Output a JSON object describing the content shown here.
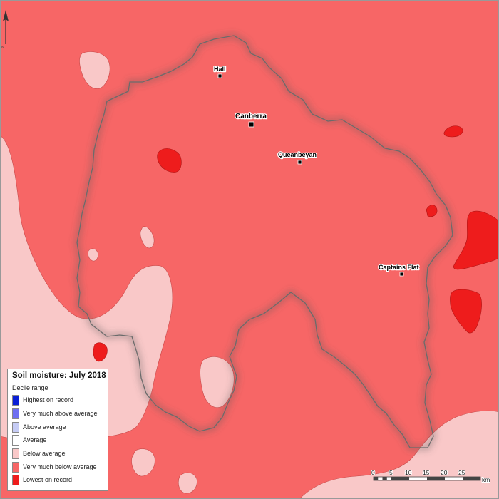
{
  "map": {
    "title": "Soil moisture: July 2018",
    "legend_subtitle": "Decile range",
    "legend": [
      {
        "label": "Highest on record",
        "color": "#0a1fd6"
      },
      {
        "label": "Very much above average",
        "color": "#6f6ff2"
      },
      {
        "label": "Above average",
        "color": "#c6ccf5"
      },
      {
        "label": "Average",
        "color": "#ffffff"
      },
      {
        "label": "Below average",
        "color": "#f9c8c8"
      },
      {
        "label": "Very much below average",
        "color": "#f76666"
      },
      {
        "label": "Lowest on record",
        "color": "#ee1c1c"
      }
    ],
    "towns": [
      {
        "name": "Hall"
      },
      {
        "name": "Canberra"
      },
      {
        "name": "Queanbeyan"
      },
      {
        "name": "Captains Flat"
      }
    ],
    "scale_bar": {
      "ticks": [
        "0",
        "5",
        "10",
        "15",
        "20",
        "25"
      ],
      "unit": "km"
    },
    "north_arrow_label": "N"
  }
}
